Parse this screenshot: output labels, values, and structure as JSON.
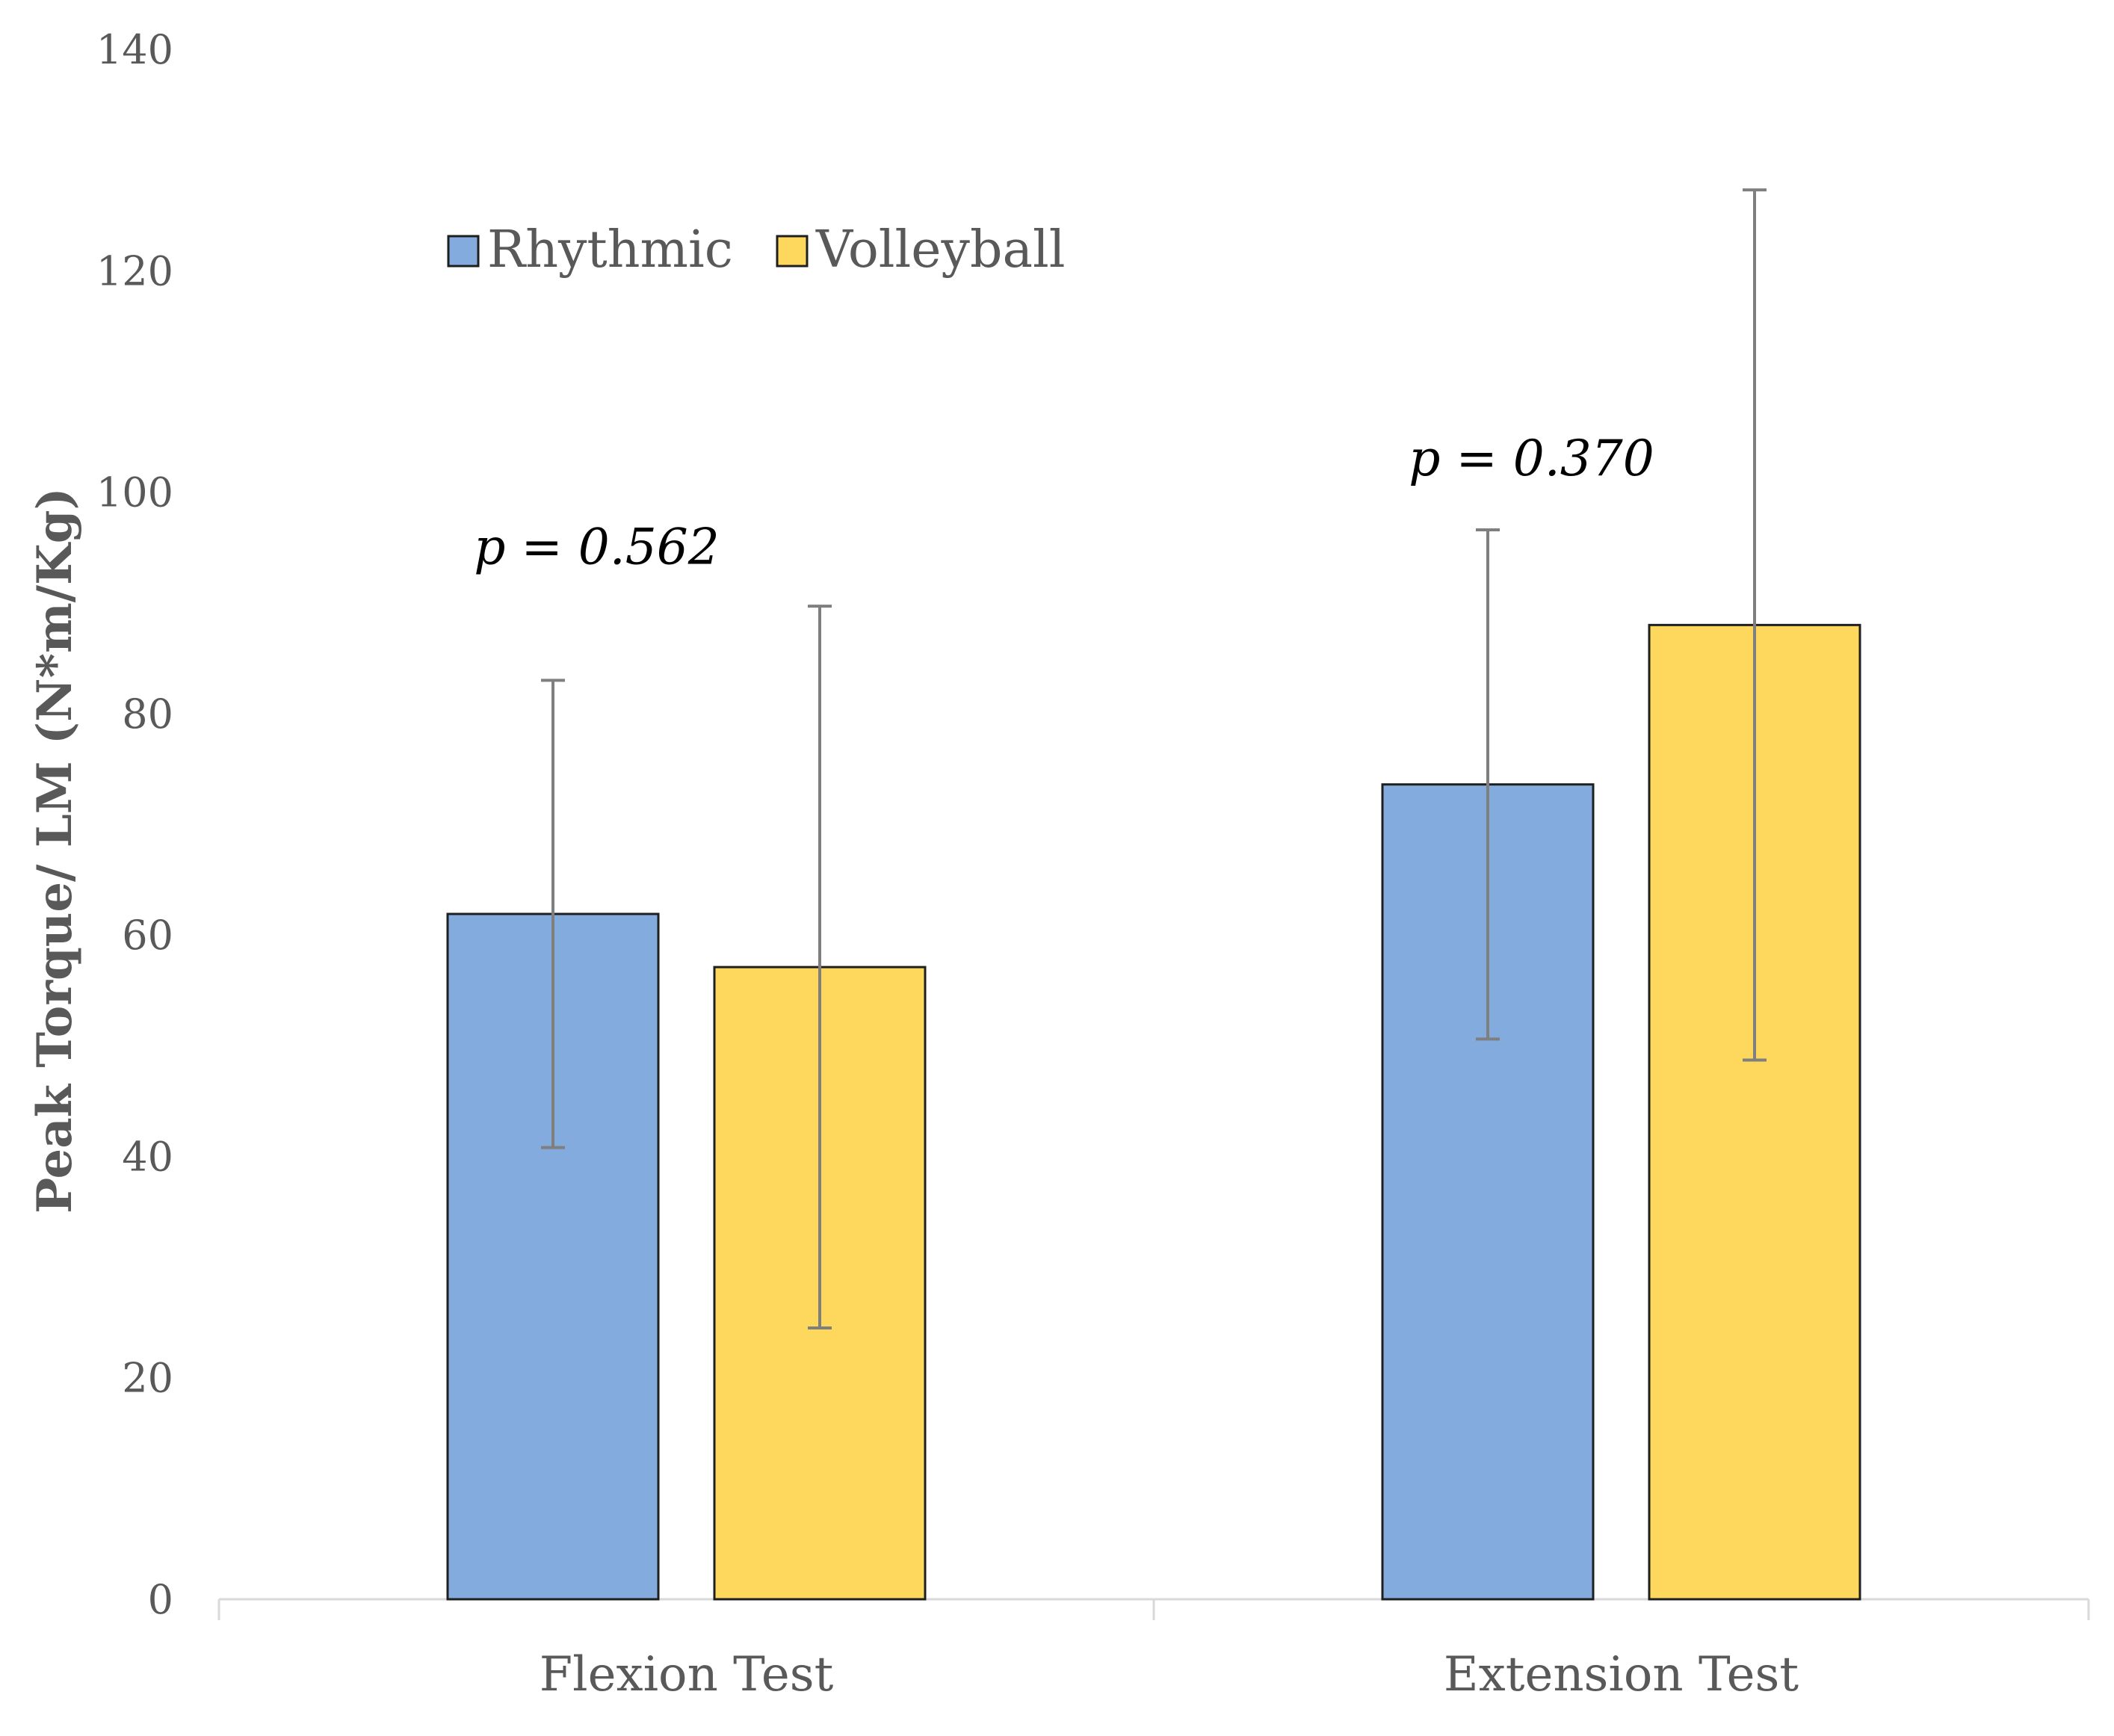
{
  "chart_data": {
    "type": "bar",
    "title": "",
    "xlabel": "",
    "ylabel": "Peak Torque/ LM (N*m/Kg)",
    "ylim": [
      0,
      140
    ],
    "yticks": [
      0,
      20,
      40,
      60,
      80,
      100,
      120,
      140
    ],
    "ytick_labels": [
      "0",
      "20",
      "40",
      "60",
      "80",
      "100",
      "120",
      "140"
    ],
    "grid": false,
    "legend_position": "top-left",
    "categories": [
      "Flexion Test",
      "Extension Test"
    ],
    "series": [
      {
        "name": "Rhythmic",
        "color": "#84ABDE",
        "values": [
          61.9,
          73.6
        ],
        "error": [
          21.1,
          23.0
        ]
      },
      {
        "name": "Volleyball",
        "color": "#FED85D",
        "values": [
          57.1,
          88.0
        ],
        "error": [
          32.6,
          39.3
        ]
      }
    ],
    "annotations": [
      {
        "category": "Flexion Test",
        "label": "p = 0.562",
        "y": 95
      },
      {
        "category": "Extension Test",
        "label": "p = 0.370",
        "y": 103
      }
    ]
  }
}
